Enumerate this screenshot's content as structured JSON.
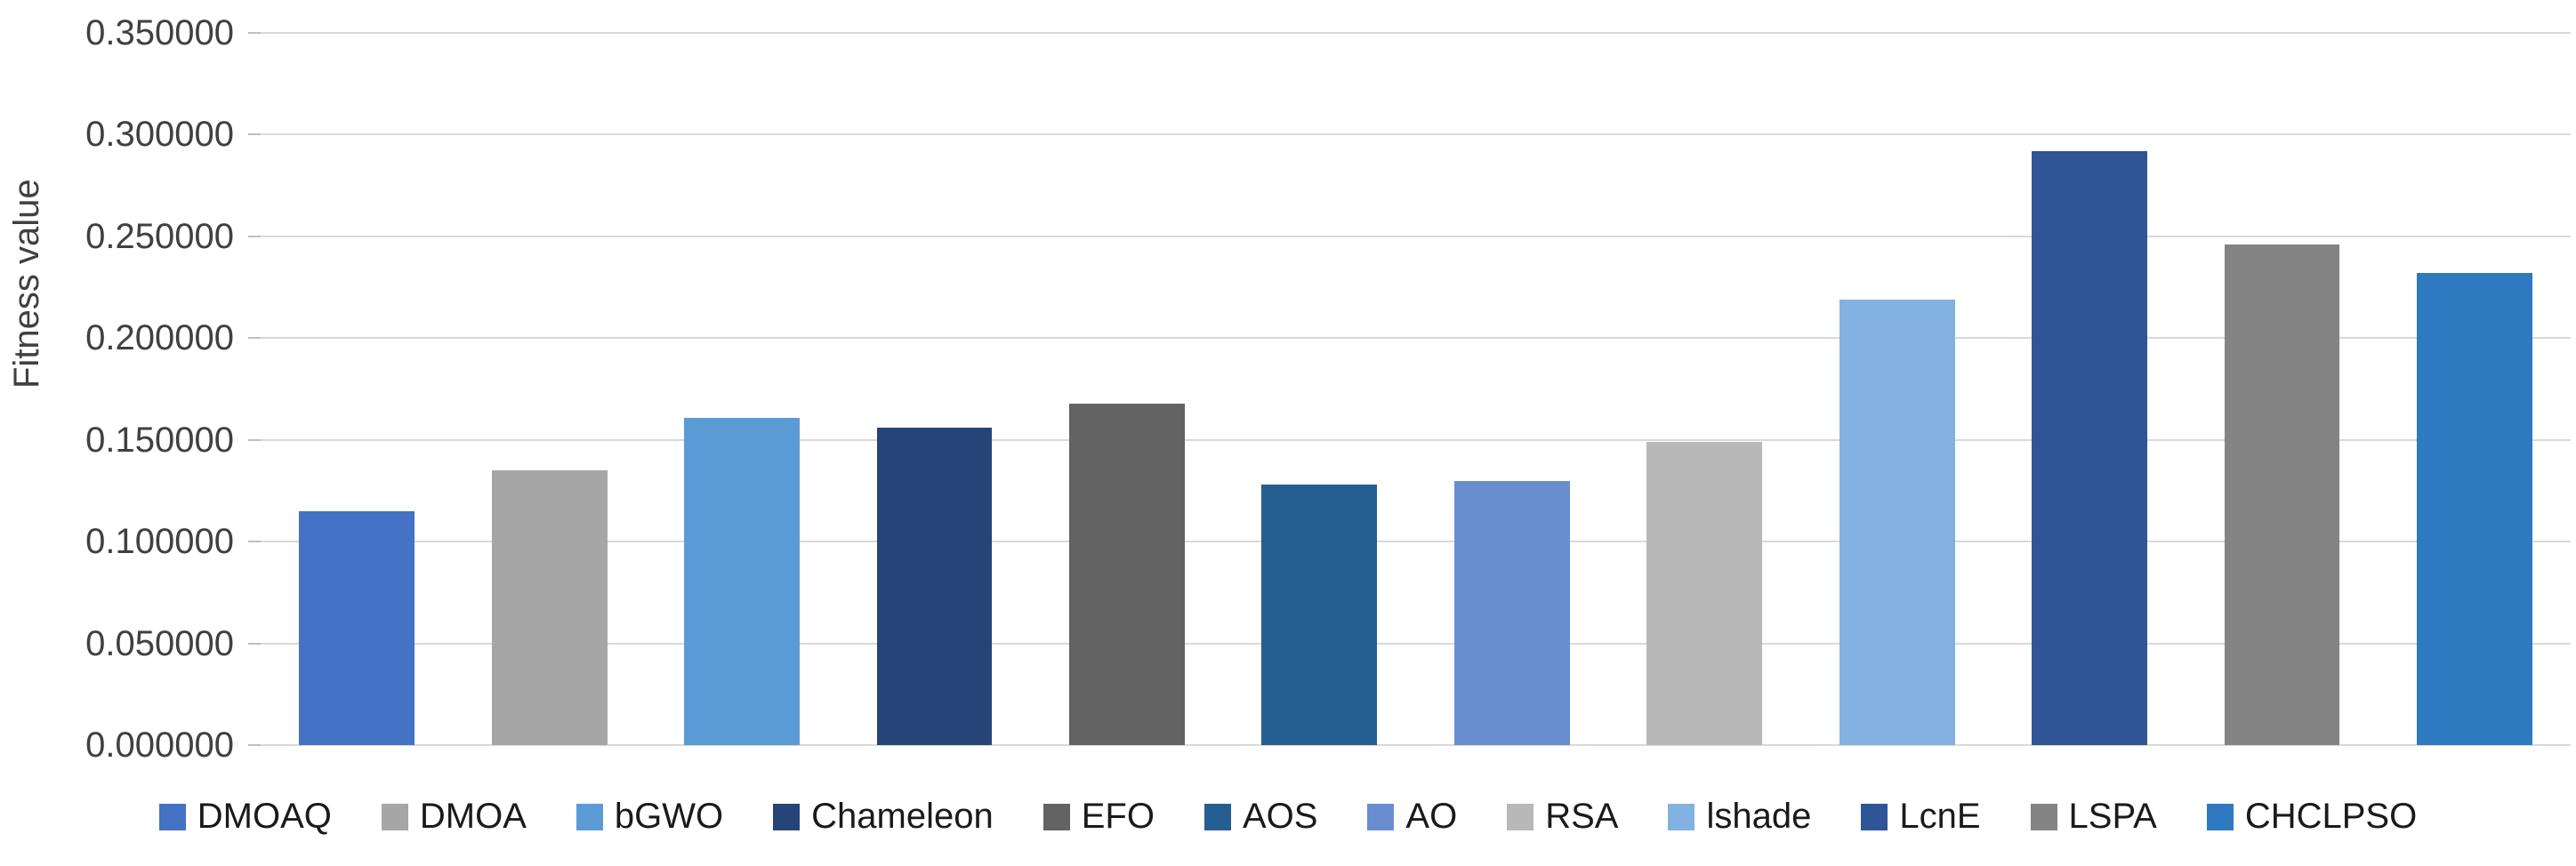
{
  "chart_data": {
    "type": "bar",
    "title": "",
    "xlabel": "",
    "ylabel": "Fitness value",
    "ylim": [
      0,
      0.35
    ],
    "ytick_step": 0.05,
    "yticks": [
      "0.000000",
      "0.050000",
      "0.100000",
      "0.150000",
      "0.200000",
      "0.250000",
      "0.300000",
      "0.350000"
    ],
    "grid": true,
    "legend_position": "bottom",
    "categories": [
      "DMOAQ",
      "DMOA",
      "bGWO",
      "Chameleon",
      "EFO",
      "AOS",
      "AO",
      "RSA",
      "lshade",
      "LcnE",
      "LSPA",
      "CHCLPSO"
    ],
    "values": [
      0.115,
      0.135,
      0.161,
      0.156,
      0.168,
      0.128,
      0.13,
      0.149,
      0.219,
      0.292,
      0.246,
      0.232
    ],
    "colors": [
      "#4472C4",
      "#A6A6A6",
      "#5B9BD5",
      "#264478",
      "#636363",
      "#255E91",
      "#698ED0",
      "#B8B8B8",
      "#83B2E1",
      "#2F5597",
      "#848484",
      "#2E79BF"
    ],
    "gridline_color": "#D9D9D9",
    "tick_mark_color": "#BFBFBF",
    "axis_text_color": "#404040",
    "background_color": "#FFFFFF"
  }
}
